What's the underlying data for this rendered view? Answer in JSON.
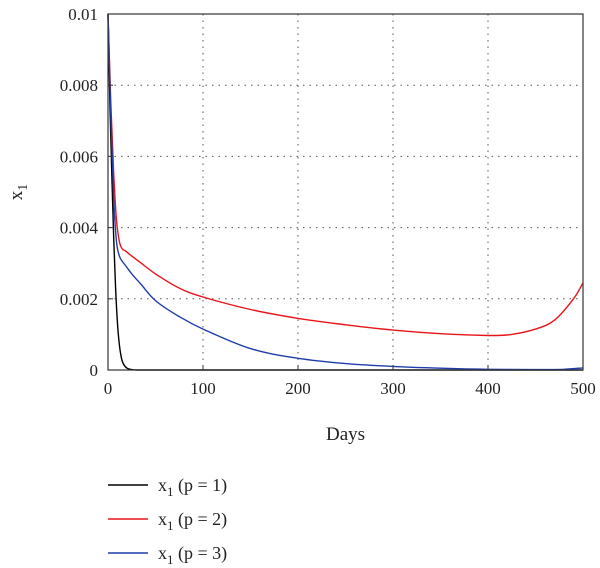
{
  "chart_data": {
    "type": "line",
    "title": "",
    "xlabel": "Days",
    "ylabel": "x",
    "ylabel_subscript": "1",
    "xlim": [
      0,
      500
    ],
    "ylim": [
      0,
      0.01
    ],
    "x_ticks": [
      0,
      100,
      200,
      300,
      400,
      500
    ],
    "x_tick_labels": [
      "0",
      "100",
      "200",
      "300",
      "400",
      "500"
    ],
    "y_ticks": [
      0,
      0.002,
      0.004,
      0.006,
      0.008,
      0.01
    ],
    "y_tick_labels": [
      "0",
      "0.002",
      "0.004",
      "0.006",
      "0.008",
      "0.01"
    ],
    "grid": true,
    "legend_position": "bottom-left, below plot",
    "series": [
      {
        "name": "x",
        "name_subscript": "1",
        "name_suffix": " (p = 1)",
        "color": "#000000",
        "x": [
          0,
          2,
          4,
          6,
          8,
          10,
          12,
          14,
          16,
          20,
          25,
          30,
          40,
          50,
          100,
          200,
          300,
          400,
          500
        ],
        "y": [
          0.01,
          0.0075,
          0.0055,
          0.0037,
          0.0023,
          0.0013,
          0.0007,
          0.00035,
          0.00018,
          5e-05,
          1e-05,
          0,
          0,
          0,
          0,
          0,
          0,
          0,
          0
        ]
      },
      {
        "name": "x",
        "name_subscript": "1",
        "name_suffix": " (p = 2)",
        "color": "#e8141a",
        "x": [
          0,
          3,
          6,
          9,
          12,
          15,
          18,
          25,
          35,
          50,
          75,
          100,
          150,
          200,
          250,
          300,
          350,
          400,
          425,
          450,
          470,
          490,
          500
        ],
        "y": [
          0.01,
          0.0075,
          0.0055,
          0.0042,
          0.0036,
          0.0034,
          0.00335,
          0.0032,
          0.003,
          0.0027,
          0.0023,
          0.00205,
          0.0017,
          0.00145,
          0.00127,
          0.00112,
          0.00102,
          0.00097,
          0.001,
          0.00115,
          0.0014,
          0.002,
          0.00245
        ]
      },
      {
        "name": "x",
        "name_subscript": "1",
        "name_suffix": " (p = 3)",
        "color": "#1f3da8",
        "x": [
          0,
          3,
          6,
          9,
          12,
          15,
          18,
          25,
          35,
          50,
          75,
          100,
          150,
          200,
          250,
          300,
          350,
          400,
          450,
          480,
          500
        ],
        "y": [
          0.01,
          0.0072,
          0.0048,
          0.0036,
          0.0032,
          0.00305,
          0.00295,
          0.0027,
          0.0024,
          0.00195,
          0.0015,
          0.00115,
          0.0006,
          0.00033,
          0.00018,
          0.0001,
          5e-05,
          2e-05,
          1e-05,
          2e-05,
          6e-05
        ]
      }
    ]
  }
}
